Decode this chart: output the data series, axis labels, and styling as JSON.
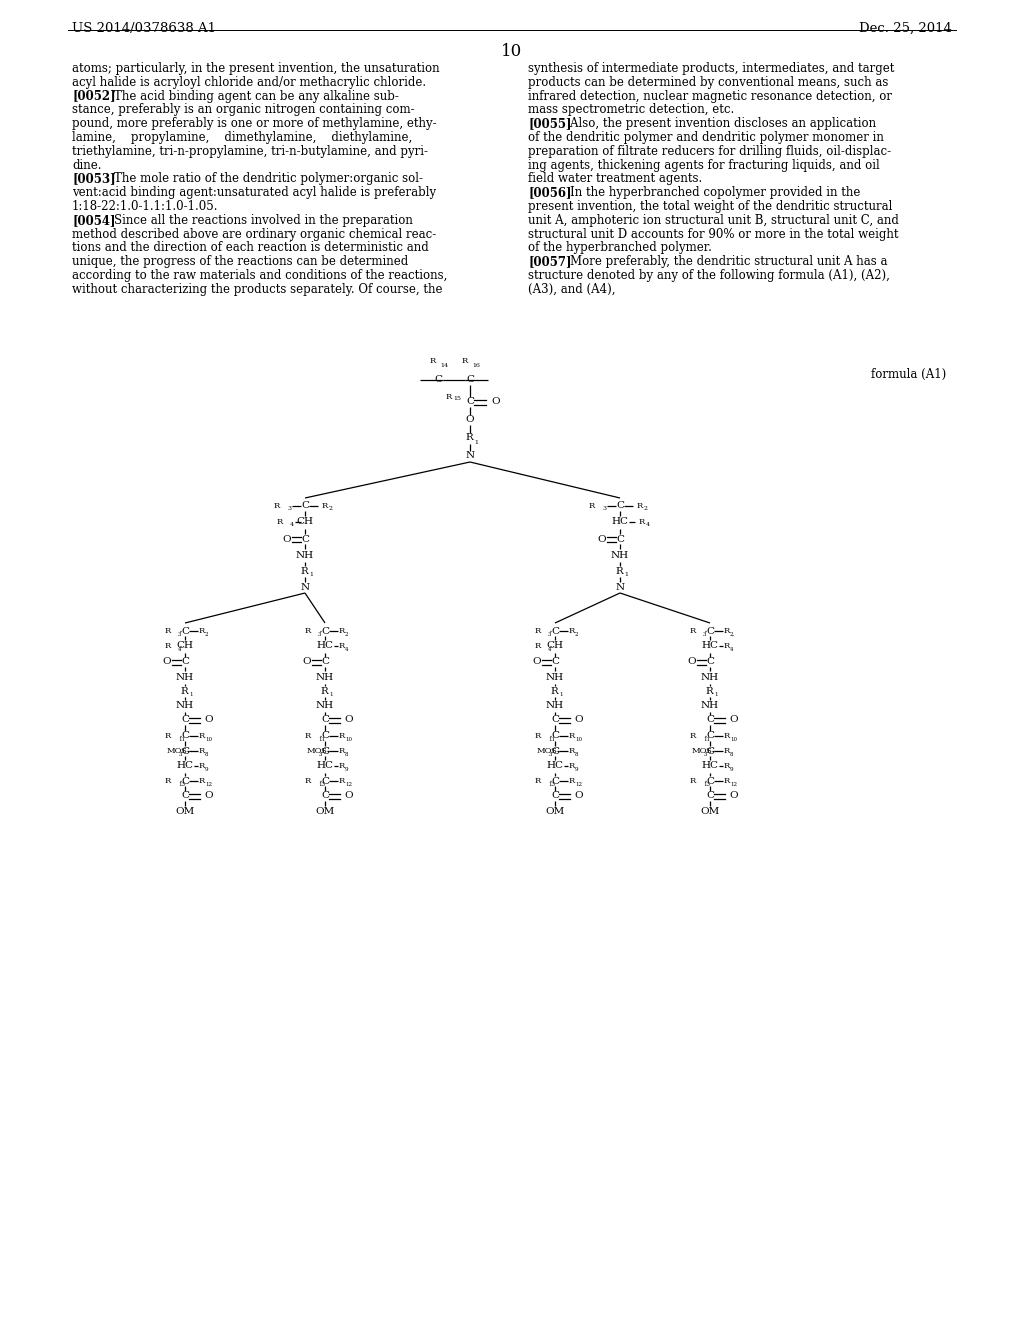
{
  "page_number": "10",
  "patent_number": "US 2014/0378638 A1",
  "patent_date": "Dec. 25, 2014",
  "formula_label": "formula (A1)",
  "left_col_text": [
    [
      "normal",
      "atoms; particularly, in the present invention, the unsaturation"
    ],
    [
      "normal",
      "acyl halide is acryloyl chloride and/or methacrylic chloride."
    ],
    [
      "bold_para",
      "[0052]",
      "    The acid binding agent can be any alkaline sub-"
    ],
    [
      "normal",
      "stance, preferably is an organic nitrogen containing com-"
    ],
    [
      "normal",
      "pound, more preferably is one or more of methylamine, ethy-"
    ],
    [
      "normal",
      "lamine,    propylamine,    dimethylamine,    diethylamine,"
    ],
    [
      "normal",
      "triethylamine, tri-n-propylamine, tri-n-butylamine, and pyri-"
    ],
    [
      "normal",
      "dine."
    ],
    [
      "bold_para",
      "[0053]",
      "    The mole ratio of the dendritic polymer:organic sol-"
    ],
    [
      "normal",
      "vent:acid binding agent:unsaturated acyl halide is preferably"
    ],
    [
      "normal",
      "1:18-22:1.0-1.1:1.0-1.05."
    ],
    [
      "bold_para",
      "[0054]",
      "    Since all the reactions involved in the preparation"
    ],
    [
      "normal",
      "method described above are ordinary organic chemical reac-"
    ],
    [
      "normal",
      "tions and the direction of each reaction is deterministic and"
    ],
    [
      "normal",
      "unique, the progress of the reactions can be determined"
    ],
    [
      "normal",
      "according to the raw materials and conditions of the reactions,"
    ],
    [
      "normal",
      "without characterizing the products separately. Of course, the"
    ]
  ],
  "right_col_text": [
    [
      "normal",
      "synthesis of intermediate products, intermediates, and target"
    ],
    [
      "normal",
      "products can be determined by conventional means, such as"
    ],
    [
      "normal",
      "infrared detection, nuclear magnetic resonance detection, or"
    ],
    [
      "normal",
      "mass spectrometric detection, etc."
    ],
    [
      "bold_para",
      "[0055]",
      "    Also, the present invention discloses an application"
    ],
    [
      "normal",
      "of the dendritic polymer and dendritic polymer monomer in"
    ],
    [
      "normal",
      "preparation of filtrate reducers for drilling fluids, oil-displac-"
    ],
    [
      "normal",
      "ing agents, thickening agents for fracturing liquids, and oil"
    ],
    [
      "normal",
      "field water treatment agents."
    ],
    [
      "bold_para",
      "[0056]",
      "    In the hyperbranched copolymer provided in the"
    ],
    [
      "normal",
      "present invention, the total weight of the dendritic structural"
    ],
    [
      "normal",
      "unit A, amphoteric ion structural unit B, structural unit C, and"
    ],
    [
      "normal",
      "structural unit D accounts for 90% or more in the total weight"
    ],
    [
      "normal",
      "of the hyperbranched polymer."
    ],
    [
      "bold_para",
      "[0057]",
      "    More preferably, the dendritic structural unit A has a"
    ],
    [
      "normal",
      "structure denoted by any of the following formula (A1), (A2),"
    ],
    [
      "normal",
      "(A3), and (A4),"
    ]
  ],
  "background_color": "#ffffff",
  "text_color": "#000000",
  "font_size": 8.5,
  "header_font_size": 9.5,
  "page_num_font_size": 12
}
